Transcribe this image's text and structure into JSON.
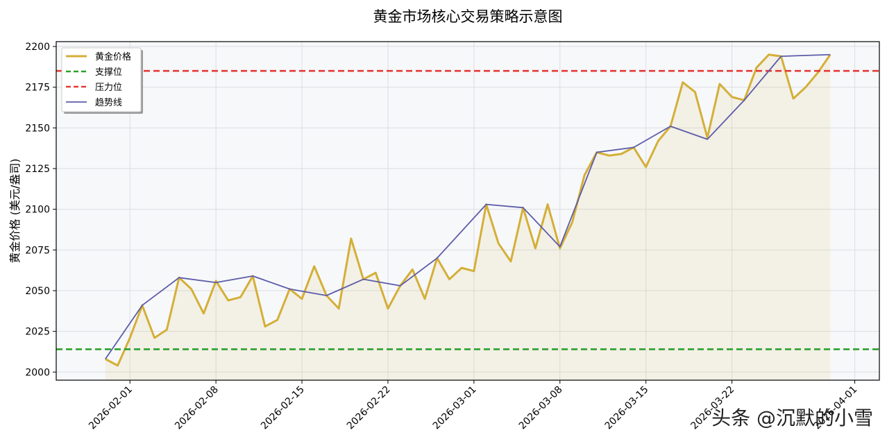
{
  "chart_data": {
    "type": "line",
    "title": "黄金市场核心交易策略示意图",
    "xlabel": "",
    "ylabel": "黄金价格 (美元/盎司)",
    "ylim": [
      1995,
      2203
    ],
    "xlim": [
      "2026-01-26",
      "2026-04-03"
    ],
    "grid": true,
    "legend_position": "top-left",
    "yticks": [
      2000,
      2025,
      2050,
      2075,
      2100,
      2125,
      2150,
      2175,
      2200
    ],
    "xticks": [
      "2026-02-01",
      "2026-02-08",
      "2026-02-15",
      "2026-02-22",
      "2026-03-01",
      "2026-03-08",
      "2026-03-15",
      "2026-03-22",
      "2026-04-01"
    ],
    "series": [
      {
        "name": "黄金价格",
        "style": "line-with-fill",
        "color": "#d4af37",
        "points": [
          [
            "2026-01-30",
            2008
          ],
          [
            "2026-01-31",
            2004
          ],
          [
            "2026-02-01",
            2021
          ],
          [
            "2026-02-02",
            2041
          ],
          [
            "2026-02-03",
            2021
          ],
          [
            "2026-02-04",
            2026
          ],
          [
            "2026-02-05",
            2058
          ],
          [
            "2026-02-06",
            2051
          ],
          [
            "2026-02-07",
            2036
          ],
          [
            "2026-02-08",
            2056
          ],
          [
            "2026-02-09",
            2044
          ],
          [
            "2026-02-10",
            2046
          ],
          [
            "2026-02-11",
            2059
          ],
          [
            "2026-02-12",
            2028
          ],
          [
            "2026-02-13",
            2032
          ],
          [
            "2026-02-14",
            2051
          ],
          [
            "2026-02-15",
            2045
          ],
          [
            "2026-02-16",
            2065
          ],
          [
            "2026-02-17",
            2047
          ],
          [
            "2026-02-18",
            2039
          ],
          [
            "2026-02-19",
            2082
          ],
          [
            "2026-02-20",
            2057
          ],
          [
            "2026-02-21",
            2061
          ],
          [
            "2026-02-22",
            2039
          ],
          [
            "2026-02-23",
            2053
          ],
          [
            "2026-02-24",
            2063
          ],
          [
            "2026-02-25",
            2045
          ],
          [
            "2026-02-26",
            2070
          ],
          [
            "2026-02-27",
            2057
          ],
          [
            "2026-02-28",
            2064
          ],
          [
            "2026-03-01",
            2062
          ],
          [
            "2026-03-02",
            2103
          ],
          [
            "2026-03-03",
            2079
          ],
          [
            "2026-03-04",
            2068
          ],
          [
            "2026-03-05",
            2101
          ],
          [
            "2026-03-06",
            2076
          ],
          [
            "2026-03-07",
            2103
          ],
          [
            "2026-03-08",
            2076
          ],
          [
            "2026-03-09",
            2092
          ],
          [
            "2026-03-10",
            2121
          ],
          [
            "2026-03-11",
            2135
          ],
          [
            "2026-03-12",
            2133
          ],
          [
            "2026-03-13",
            2134
          ],
          [
            "2026-03-14",
            2138
          ],
          [
            "2026-03-15",
            2126
          ],
          [
            "2026-03-16",
            2142
          ],
          [
            "2026-03-17",
            2151
          ],
          [
            "2026-03-18",
            2178
          ],
          [
            "2026-03-19",
            2172
          ],
          [
            "2026-03-20",
            2144
          ],
          [
            "2026-03-21",
            2177
          ],
          [
            "2026-03-22",
            2169
          ],
          [
            "2026-03-23",
            2167
          ],
          [
            "2026-03-24",
            2187
          ],
          [
            "2026-03-25",
            2195
          ],
          [
            "2026-03-26",
            2194
          ],
          [
            "2026-03-27",
            2168
          ],
          [
            "2026-03-28",
            2175
          ],
          [
            "2026-03-29",
            2184
          ],
          [
            "2026-03-30",
            2195
          ]
        ]
      },
      {
        "name": "支撑位",
        "style": "dashed",
        "color": "#2ca02c",
        "constant": 2014
      },
      {
        "name": "压力位",
        "style": "dashed",
        "color": "#e53935",
        "constant": 2185
      },
      {
        "name": "趋势线",
        "style": "line",
        "color": "#5c5ca8",
        "points": [
          [
            "2026-01-30",
            2008
          ],
          [
            "2026-02-02",
            2041
          ],
          [
            "2026-02-05",
            2058
          ],
          [
            "2026-02-08",
            2055
          ],
          [
            "2026-02-11",
            2059
          ],
          [
            "2026-02-14",
            2051
          ],
          [
            "2026-02-17",
            2047
          ],
          [
            "2026-02-20",
            2057
          ],
          [
            "2026-02-23",
            2053
          ],
          [
            "2026-02-26",
            2070
          ],
          [
            "2026-03-02",
            2103
          ],
          [
            "2026-03-05",
            2101
          ],
          [
            "2026-03-08",
            2077
          ],
          [
            "2026-03-11",
            2135
          ],
          [
            "2026-03-14",
            2138
          ],
          [
            "2026-03-17",
            2151
          ],
          [
            "2026-03-20",
            2143
          ],
          [
            "2026-03-23",
            2167
          ],
          [
            "2026-03-26",
            2194
          ],
          [
            "2026-03-30",
            2195
          ]
        ]
      }
    ]
  },
  "watermark": "头条 @沉默的小雪"
}
